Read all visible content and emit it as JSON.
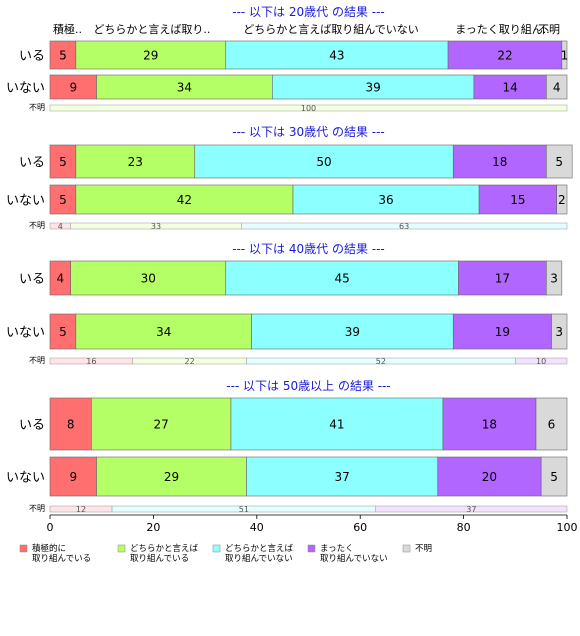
{
  "chart_data": {
    "type": "bar",
    "orientation": "horizontal",
    "stacked": "percent",
    "xlim": [
      0,
      100
    ],
    "x_ticks": [
      "0",
      "20",
      "40",
      "60",
      "80",
      "100"
    ],
    "header_labels": [
      "積極..",
      "どちらかと言えば取り..",
      "どちらかと言えば取り組んでいない",
      "まったく取り組ん..",
      "不明"
    ],
    "legend": {
      "placement": "bottom-left",
      "entries": [
        {
          "lines": [
            "積極的に",
            "取り組んでいる"
          ],
          "color": "#ff6f6f"
        },
        {
          "lines": [
            "どちらかと言えば",
            "取り組んでいる"
          ],
          "color": "#b5ff66"
        },
        {
          "lines": [
            "どちらかと言えば",
            "取り組んでいない"
          ],
          "color": "#8cffff"
        },
        {
          "lines": [
            "まったく",
            "取り組んでいない"
          ],
          "color": "#b166ff"
        },
        {
          "lines": [
            "不明"
          ],
          "color": "#d9d9d9"
        }
      ]
    },
    "panels": [
      {
        "title": "--- 以下は 20歳代 の結果 ---",
        "rows": [
          {
            "label": "いる",
            "values": [
              5,
              29,
              43,
              22,
              1
            ]
          },
          {
            "label": "いない",
            "values": [
              9,
              34,
              39,
              14,
              4
            ]
          }
        ],
        "unknown": {
          "label": "不明",
          "values": [
            0,
            100,
            0,
            0,
            0
          ]
        }
      },
      {
        "title": "--- 以下は 30歳代 の結果 ---",
        "rows": [
          {
            "label": "いる",
            "values": [
              5,
              23,
              50,
              18,
              5
            ]
          },
          {
            "label": "いない",
            "values": [
              5,
              42,
              36,
              15,
              2
            ]
          }
        ],
        "unknown": {
          "label": "不明",
          "values": [
            4,
            33,
            63,
            0,
            0
          ]
        }
      },
      {
        "title": "--- 以下は 40歳代 の結果 ---",
        "rows": [
          {
            "label": "いる",
            "values": [
              4,
              30,
              45,
              17,
              3
            ]
          },
          {
            "label": "いない",
            "values": [
              5,
              34,
              39,
              19,
              3
            ]
          }
        ],
        "unknown": {
          "label": "不明",
          "values": [
            16,
            22,
            52,
            10,
            0
          ]
        }
      },
      {
        "title": "--- 以下は 50歳以上 の結果 ---",
        "rows": [
          {
            "label": "いる",
            "values": [
              8,
              27,
              41,
              18,
              6
            ]
          },
          {
            "label": "いない",
            "values": [
              9,
              29,
              37,
              20,
              5
            ]
          }
        ],
        "unknown": {
          "label": "不明",
          "values": [
            12,
            0,
            51,
            37,
            0
          ]
        }
      }
    ]
  }
}
